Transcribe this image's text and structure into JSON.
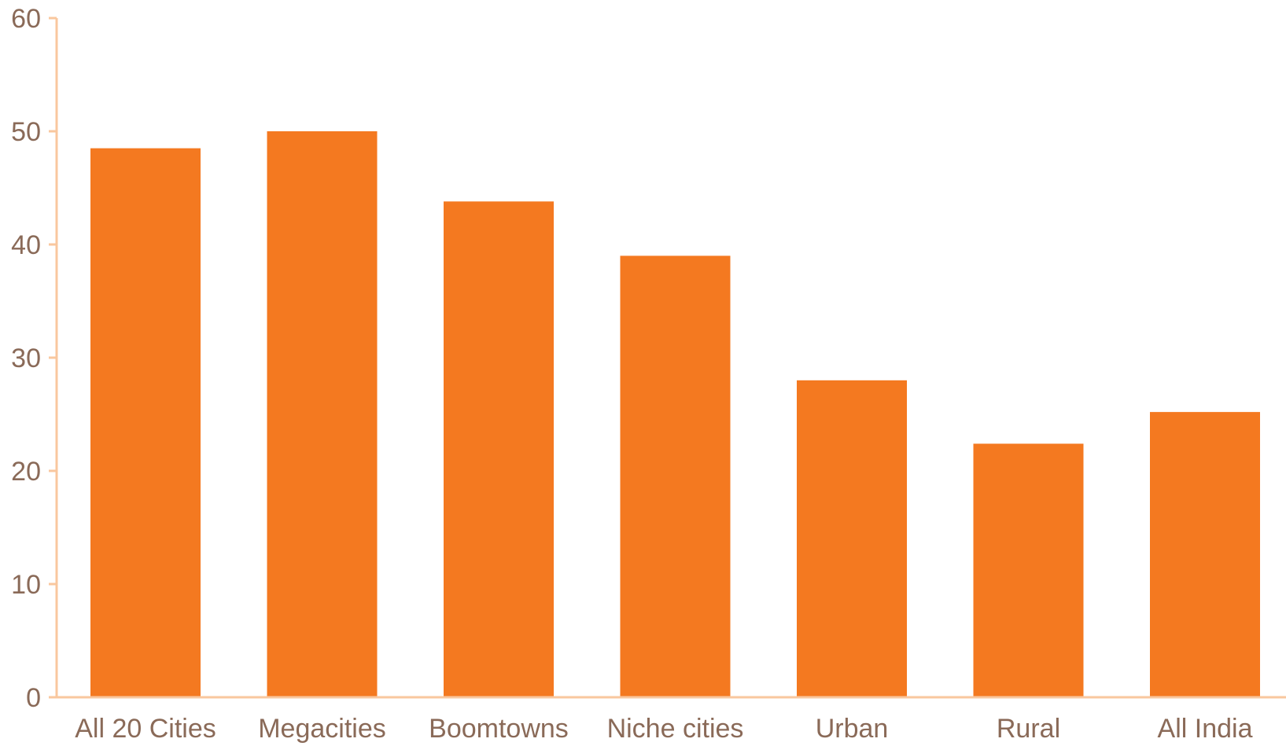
{
  "chart_data": {
    "type": "bar",
    "title": "",
    "xlabel": "",
    "ylabel": "",
    "categories": [
      "All 20 Cities",
      "Megacities",
      "Boomtowns",
      "Niche cities",
      "Urban",
      "Rural",
      "All India"
    ],
    "values": [
      48.5,
      50,
      43.8,
      39,
      28,
      22.4,
      25.2
    ],
    "ylim": [
      0,
      60
    ],
    "yticks": [
      "0",
      "10",
      "20",
      "30",
      "40",
      "50",
      "60"
    ],
    "grid": false,
    "legend": "none",
    "colors": {
      "bar": "#f47920",
      "axis": "#f9c79e",
      "text": "#8a6a58"
    }
  }
}
